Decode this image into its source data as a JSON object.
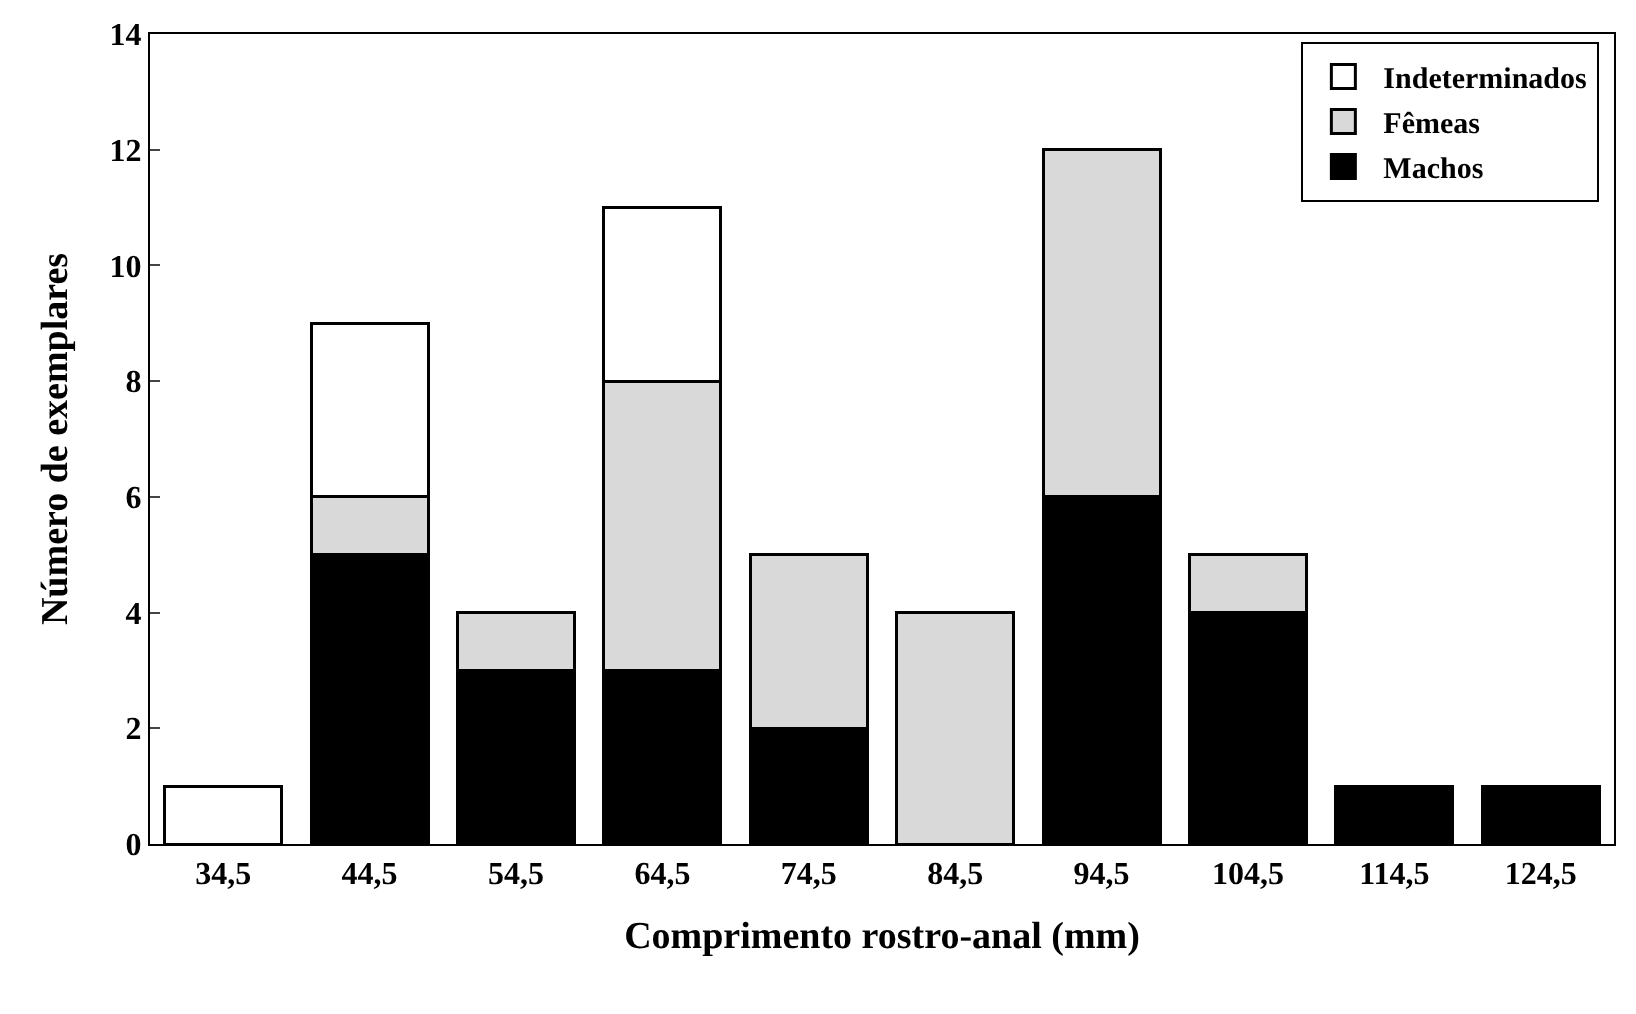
{
  "chart_data": {
    "type": "bar",
    "stacked": true,
    "xlabel": "Comprimento rostro-anal (mm)",
    "ylabel": "Número de exemplares",
    "categories": [
      "34,5",
      "44,5",
      "54,5",
      "64,5",
      "74,5",
      "84,5",
      "94,5",
      "104,5",
      "114,5",
      "124,5"
    ],
    "series": [
      {
        "name": "Machos",
        "color": "#000000",
        "values": [
          0,
          5,
          3,
          3,
          2,
          0,
          6,
          4,
          1,
          1
        ]
      },
      {
        "name": "Fêmeas",
        "color": "#d9d9d9",
        "values": [
          0,
          1,
          1,
          5,
          3,
          4,
          6,
          1,
          0,
          0
        ]
      },
      {
        "name": "Indeterminados",
        "color": "#ffffff",
        "values": [
          1,
          3,
          0,
          3,
          0,
          0,
          0,
          0,
          0,
          0
        ]
      }
    ],
    "ylim": [
      0,
      14
    ],
    "yticks": [
      0,
      2,
      4,
      6,
      8,
      10,
      12,
      14
    ],
    "legend": "top right"
  }
}
